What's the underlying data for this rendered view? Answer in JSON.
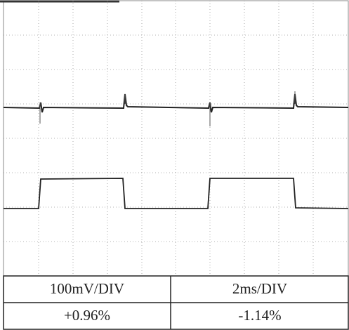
{
  "table": {
    "rows": [
      [
        "100mV/DIV",
        "2ms/DIV"
      ],
      [
        "+0.96%",
        "-1.14%"
      ]
    ]
  }
}
